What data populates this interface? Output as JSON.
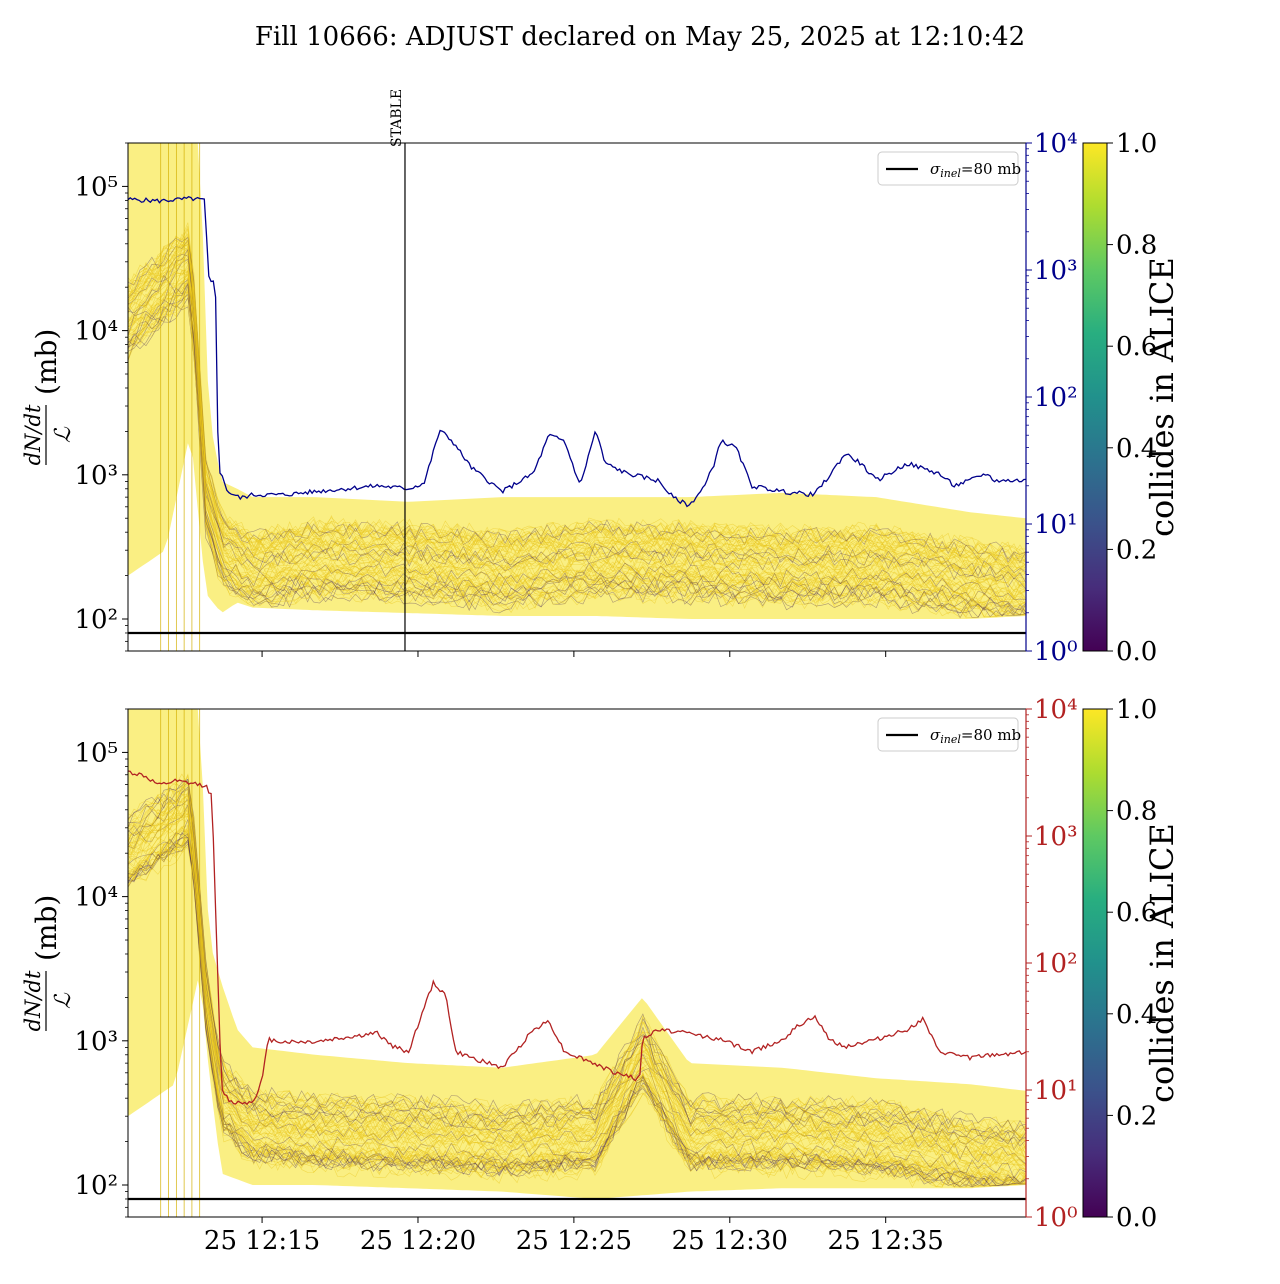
{
  "figure": {
    "title": "Fill 10666: ADJUST declared on May 25, 2025 at 12:10:42"
  },
  "chart_data": [
    {
      "type": "line",
      "panel": "top",
      "y_scale": "log",
      "ylabel": {
        "base": "(mb)",
        "numerator": "dN/dt",
        "denominator": "ℒ"
      },
      "ylim": [
        60,
        200000
      ],
      "yticks": [
        "10⁵",
        "10⁴",
        "10³",
        "10²"
      ],
      "ytick_values": [
        100000,
        10000,
        1000,
        100
      ],
      "right_axis": {
        "scale": "log",
        "ylim": [
          1,
          10000
        ],
        "color": "#00008b",
        "ticks": [
          "10⁴",
          "10³",
          "10²",
          "10¹",
          "10⁰"
        ],
        "tick_values": [
          10000,
          1000,
          100,
          10,
          1
        ]
      },
      "xlim": [
        "12:10:42",
        "12:39:30"
      ],
      "xticks": [],
      "vertical_marker": {
        "label": "STABLE",
        "time": "12:19:35"
      },
      "reference_line": {
        "value": 80,
        "legend": "σinel=80 mb",
        "sigma": "σ",
        "subscript": "inel",
        "rest": "=80 mb"
      },
      "band_color": "#f5e11d",
      "band_dark_color": "#4b2d5a",
      "band_lower": [
        [
          0,
          200
        ],
        [
          1.2,
          300
        ],
        [
          2.0,
          2000
        ],
        [
          2.5,
          150
        ],
        [
          3.0,
          110
        ],
        [
          3.5,
          130
        ],
        [
          4,
          120
        ],
        [
          6,
          115
        ],
        [
          9,
          110
        ],
        [
          12,
          105
        ],
        [
          15,
          105
        ],
        [
          18,
          100
        ],
        [
          21,
          100
        ],
        [
          24,
          100
        ],
        [
          27,
          100
        ],
        [
          28.8,
          105
        ]
      ],
      "band_upper": [
        [
          0,
          200000
        ],
        [
          2.3,
          200000
        ],
        [
          2.6,
          2500
        ],
        [
          3.0,
          900
        ],
        [
          3.5,
          800
        ],
        [
          4,
          700
        ],
        [
          6,
          700
        ],
        [
          9,
          650
        ],
        [
          12,
          700
        ],
        [
          15,
          700
        ],
        [
          18,
          700
        ],
        [
          21,
          750
        ],
        [
          24,
          700
        ],
        [
          27,
          550
        ],
        [
          28.8,
          500
        ]
      ],
      "band_center": [
        [
          0,
          12000
        ],
        [
          2.0,
          30000
        ],
        [
          2.5,
          700
        ],
        [
          3.0,
          300
        ],
        [
          4,
          220
        ],
        [
          6,
          260
        ],
        [
          9,
          250
        ],
        [
          12,
          220
        ],
        [
          15,
          260
        ],
        [
          18,
          250
        ],
        [
          21,
          230
        ],
        [
          24,
          240
        ],
        [
          27,
          190
        ],
        [
          28.8,
          170
        ]
      ],
      "line_series": {
        "color": "#00008b",
        "points": [
          [
            0,
            3600
          ],
          [
            1.0,
            3500
          ],
          [
            2.0,
            3650
          ],
          [
            2.45,
            3550
          ],
          [
            2.6,
            800
          ],
          [
            2.8,
            800
          ],
          [
            2.9,
            28
          ],
          [
            3.2,
            18
          ],
          [
            3.6,
            16
          ],
          [
            4.0,
            17
          ],
          [
            5.0,
            17
          ],
          [
            6.0,
            18
          ],
          [
            7.0,
            19
          ],
          [
            8.0,
            20
          ],
          [
            9.0,
            19
          ],
          [
            9.5,
            21
          ],
          [
            10.0,
            55
          ],
          [
            10.4,
            45
          ],
          [
            11.0,
            28
          ],
          [
            12.0,
            18
          ],
          [
            13.0,
            25
          ],
          [
            13.5,
            50
          ],
          [
            14.0,
            45
          ],
          [
            14.5,
            20
          ],
          [
            15.0,
            55
          ],
          [
            15.3,
            30
          ],
          [
            16.0,
            25
          ],
          [
            17.0,
            22
          ],
          [
            17.5,
            16
          ],
          [
            18.0,
            14
          ],
          [
            18.5,
            20
          ],
          [
            18.8,
            30
          ],
          [
            19.0,
            45
          ],
          [
            19.5,
            40
          ],
          [
            20.0,
            20
          ],
          [
            21.0,
            18
          ],
          [
            22.0,
            17
          ],
          [
            22.5,
            24
          ],
          [
            23.0,
            36
          ],
          [
            23.5,
            30
          ],
          [
            24.0,
            22
          ],
          [
            25.0,
            30
          ],
          [
            26.0,
            25
          ],
          [
            26.5,
            20
          ],
          [
            27.0,
            22
          ],
          [
            27.5,
            25
          ],
          [
            27.8,
            22
          ],
          [
            28.8,
            22
          ]
        ]
      }
    },
    {
      "type": "line",
      "panel": "bottom",
      "y_scale": "log",
      "ylabel": {
        "base": "(mb)",
        "numerator": "dN/dt",
        "denominator": "ℒ"
      },
      "ylim": [
        60,
        200000
      ],
      "yticks": [
        "10⁵",
        "10⁴",
        "10³",
        "10²"
      ],
      "ytick_values": [
        100000,
        10000,
        1000,
        100
      ],
      "right_axis": {
        "scale": "log",
        "ylim": [
          1,
          10000
        ],
        "color": "#b22222",
        "ticks": [
          "10⁴",
          "10³",
          "10²",
          "10¹",
          "10⁰"
        ],
        "tick_values": [
          10000,
          1000,
          100,
          10,
          1
        ]
      },
      "xlim": [
        "12:10:42",
        "12:39:30"
      ],
      "xticks": [
        "25 12:15",
        "25 12:20",
        "25 12:25",
        "25 12:30",
        "25 12:35"
      ],
      "xtick_values": [
        4.3,
        9.3,
        14.3,
        19.3,
        24.3
      ],
      "reference_line": {
        "value": 80,
        "legend": "σinel=80 mb",
        "sigma": "σ",
        "subscript": "inel",
        "rest": "=80 mb"
      },
      "band_color": "#f5e11d",
      "band_dark_color": "#4b2d5a",
      "band_lower": [
        [
          0,
          300
        ],
        [
          1.5,
          500
        ],
        [
          2.3,
          3000
        ],
        [
          2.6,
          600
        ],
        [
          3.0,
          120
        ],
        [
          4,
          100
        ],
        [
          6,
          100
        ],
        [
          9,
          95
        ],
        [
          12,
          90
        ],
        [
          15,
          80
        ],
        [
          18,
          90
        ],
        [
          21,
          95
        ],
        [
          24,
          95
        ],
        [
          27,
          95
        ],
        [
          28.8,
          100
        ]
      ],
      "band_upper": [
        [
          0,
          200000
        ],
        [
          2.3,
          200000
        ],
        [
          2.6,
          5000
        ],
        [
          3.0,
          2500
        ],
        [
          3.5,
          1200
        ],
        [
          4,
          900
        ],
        [
          6,
          800
        ],
        [
          9,
          700
        ],
        [
          12,
          650
        ],
        [
          15,
          800
        ],
        [
          16.5,
          2000
        ],
        [
          18,
          700
        ],
        [
          21,
          650
        ],
        [
          24,
          550
        ],
        [
          27,
          500
        ],
        [
          28.8,
          450
        ]
      ],
      "band_center": [
        [
          0,
          20000
        ],
        [
          2.0,
          40000
        ],
        [
          2.5,
          2000
        ],
        [
          3.0,
          400
        ],
        [
          4,
          250
        ],
        [
          6,
          230
        ],
        [
          9,
          220
        ],
        [
          12,
          200
        ],
        [
          15,
          220
        ],
        [
          16.5,
          800
        ],
        [
          18,
          220
        ],
        [
          21,
          220
        ],
        [
          24,
          210
        ],
        [
          27,
          160
        ],
        [
          28.8,
          150
        ]
      ],
      "line_series": {
        "color": "#b22222",
        "points": [
          [
            0,
            3200
          ],
          [
            0.5,
            3000
          ],
          [
            1.0,
            2500
          ],
          [
            1.5,
            2700
          ],
          [
            2.0,
            2600
          ],
          [
            2.5,
            2500
          ],
          [
            2.7,
            2000
          ],
          [
            2.8,
            300
          ],
          [
            3.0,
            10
          ],
          [
            3.3,
            8
          ],
          [
            4.0,
            8
          ],
          [
            4.3,
            12
          ],
          [
            4.5,
            25
          ],
          [
            5.0,
            24
          ],
          [
            6.0,
            24
          ],
          [
            7.0,
            26
          ],
          [
            8.0,
            28
          ],
          [
            8.5,
            22
          ],
          [
            9.0,
            20
          ],
          [
            9.5,
            45
          ],
          [
            9.8,
            70
          ],
          [
            10.2,
            55
          ],
          [
            10.5,
            20
          ],
          [
            11.0,
            18
          ],
          [
            12.0,
            15
          ],
          [
            13.0,
            30
          ],
          [
            13.5,
            35
          ],
          [
            14.0,
            20
          ],
          [
            14.5,
            18
          ],
          [
            15.0,
            16
          ],
          [
            15.5,
            14
          ],
          [
            16.0,
            13
          ],
          [
            16.4,
            12
          ],
          [
            16.5,
            25
          ],
          [
            17.0,
            30
          ],
          [
            18.0,
            28
          ],
          [
            19.0,
            25
          ],
          [
            20.0,
            20
          ],
          [
            21.0,
            25
          ],
          [
            21.5,
            32
          ],
          [
            22.0,
            38
          ],
          [
            22.5,
            25
          ],
          [
            23.0,
            22
          ],
          [
            24.0,
            25
          ],
          [
            25.0,
            30
          ],
          [
            25.5,
            36
          ],
          [
            26.0,
            20
          ],
          [
            27.0,
            18
          ],
          [
            28.8,
            20
          ]
        ]
      }
    }
  ],
  "colorbars": [
    {
      "label": "collides in ALICE",
      "ticks": [
        "1.0",
        "0.8",
        "0.6",
        "0.4",
        "0.2",
        "0.0"
      ],
      "tick_values": [
        1.0,
        0.8,
        0.6,
        0.4,
        0.2,
        0.0
      ],
      "colormap": "viridis"
    },
    {
      "label": "collides in ALICE",
      "ticks": [
        "1.0",
        "0.8",
        "0.6",
        "0.4",
        "0.2",
        "0.0"
      ],
      "tick_values": [
        1.0,
        0.8,
        0.6,
        0.4,
        0.2,
        0.0
      ],
      "colormap": "viridis"
    }
  ]
}
